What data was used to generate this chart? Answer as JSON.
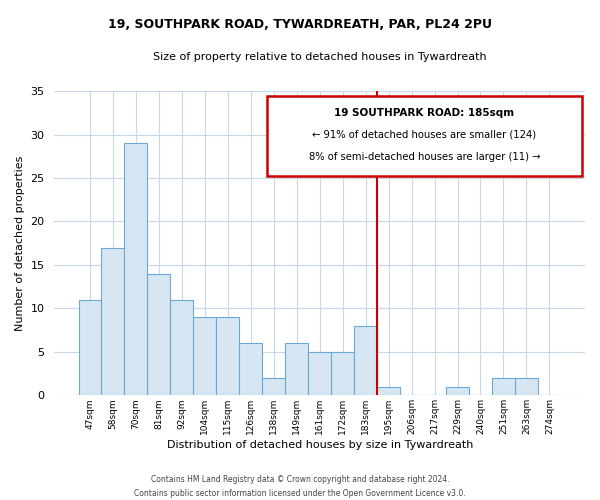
{
  "title": "19, SOUTHPARK ROAD, TYWARDREATH, PAR, PL24 2PU",
  "subtitle": "Size of property relative to detached houses in Tywardreath",
  "xlabel": "Distribution of detached houses by size in Tywardreath",
  "ylabel": "Number of detached properties",
  "bar_labels": [
    "47sqm",
    "58sqm",
    "70sqm",
    "81sqm",
    "92sqm",
    "104sqm",
    "115sqm",
    "126sqm",
    "138sqm",
    "149sqm",
    "161sqm",
    "172sqm",
    "183sqm",
    "195sqm",
    "206sqm",
    "217sqm",
    "229sqm",
    "240sqm",
    "251sqm",
    "263sqm",
    "274sqm"
  ],
  "bar_values": [
    11,
    17,
    29,
    14,
    11,
    9,
    9,
    6,
    2,
    6,
    5,
    5,
    8,
    1,
    0,
    0,
    1,
    0,
    2,
    2,
    0
  ],
  "bar_color": "#d6e6f2",
  "bar_edge_color": "#6aaad4",
  "ylim": [
    0,
    35
  ],
  "yticks": [
    0,
    5,
    10,
    15,
    20,
    25,
    30,
    35
  ],
  "property_line_index": 12,
  "property_line_color": "#cc0000",
  "annotation_title": "19 SOUTHPARK ROAD: 185sqm",
  "annotation_line1": "← 91% of detached houses are smaller (124)",
  "annotation_line2": "8% of semi-detached houses are larger (11) →",
  "footer1": "Contains HM Land Registry data © Crown copyright and database right 2024.",
  "footer2": "Contains public sector information licensed under the Open Government Licence v3.0.",
  "background_color": "#ffffff",
  "grid_color": "#c8d8e8"
}
